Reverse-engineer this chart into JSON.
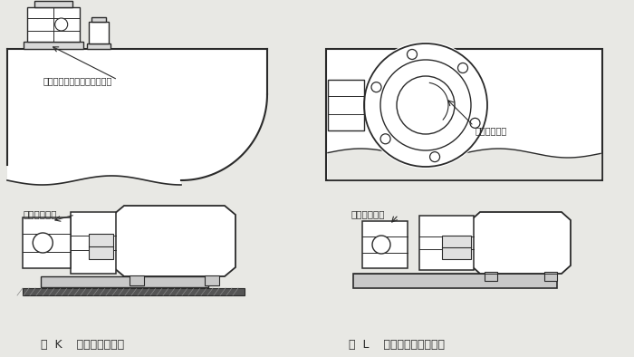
{
  "bg_color": "#e8e8e4",
  "white": "#ffffff",
  "line_color": "#2a2a2a",
  "gray_light": "#cccccc",
  "gray_mid": "#b0b0b0",
  "label_top_left": "加油口与固定式加油装置连接",
  "label_top_right": "滤油器加油口",
  "label_mid_left": "加油装置油口",
  "label_mid_right": "加油装置油口",
  "caption_left": "图  K    固定式加油装置",
  "caption_right": "图  L    单体移动式加油装置"
}
